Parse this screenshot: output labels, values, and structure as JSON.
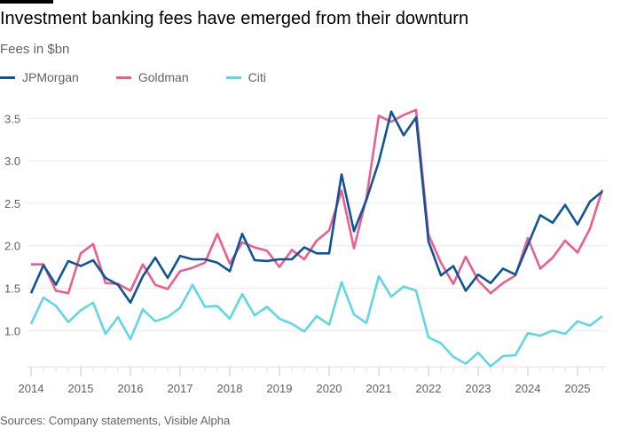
{
  "title": "Investment banking fees have emerged from their downturn",
  "subtitle": "Fees in $bn",
  "source": "Sources: Company statements, Visible Alpha",
  "chart_data": {
    "type": "line",
    "title": "Investment banking fees have emerged from their downturn",
    "ylabel": "Fees in $bn",
    "xlabel": "",
    "frequency": "quarterly",
    "x_start": "2014 Q1",
    "x_end": "2025 Q3",
    "xlim": [
      2014,
      2025.5
    ],
    "ylim": [
      0.55,
      3.65
    ],
    "yticks": [
      1.0,
      1.5,
      2.0,
      2.5,
      3.0,
      3.5
    ],
    "ytick_labels": [
      "1.0",
      "1.5",
      "2.0",
      "2.5",
      "3.0",
      "3.5"
    ],
    "xticks": [
      2014,
      2015,
      2016,
      2017,
      2018,
      2019,
      2020,
      2021,
      2022,
      2023,
      2024,
      2025
    ],
    "xtick_labels": [
      "2014",
      "2015",
      "2016",
      "2017",
      "2018",
      "2019",
      "2020",
      "2021",
      "2022",
      "2023",
      "2024",
      "2025"
    ],
    "grid": true,
    "legend": "top-left",
    "series": [
      {
        "name": "JPMorgan",
        "color": "#0f5499",
        "values": [
          1.44,
          1.77,
          1.54,
          1.82,
          1.76,
          1.83,
          1.62,
          1.54,
          1.33,
          1.64,
          1.86,
          1.62,
          1.88,
          1.84,
          1.84,
          1.8,
          1.7,
          2.14,
          1.83,
          1.82,
          1.84,
          1.84,
          1.98,
          1.91,
          1.91,
          2.84,
          2.17,
          2.54,
          2.99,
          3.58,
          3.3,
          3.51,
          2.05,
          1.65,
          1.76,
          1.47,
          1.66,
          1.56,
          1.73,
          1.66,
          2.01,
          2.36,
          2.27,
          2.48,
          2.25,
          2.52,
          2.64
        ]
      },
      {
        "name": "Goldman",
        "color": "#eb5e8d",
        "values": [
          1.78,
          1.78,
          1.47,
          1.44,
          1.91,
          2.02,
          1.56,
          1.55,
          1.47,
          1.78,
          1.54,
          1.49,
          1.7,
          1.74,
          1.8,
          2.14,
          1.79,
          2.04,
          1.98,
          1.94,
          1.75,
          1.95,
          1.84,
          2.06,
          2.18,
          2.65,
          1.97,
          2.56,
          3.53,
          3.46,
          3.54,
          3.6,
          2.13,
          1.8,
          1.55,
          1.87,
          1.59,
          1.44,
          1.56,
          1.65,
          2.09,
          1.73,
          1.86,
          2.06,
          1.92,
          2.2,
          2.66
        ]
      },
      {
        "name": "Citi",
        "color": "#5fd8e3",
        "values": [
          1.08,
          1.39,
          1.29,
          1.1,
          1.24,
          1.33,
          0.96,
          1.16,
          0.9,
          1.25,
          1.11,
          1.16,
          1.27,
          1.54,
          1.28,
          1.29,
          1.14,
          1.43,
          1.18,
          1.28,
          1.14,
          1.08,
          0.99,
          1.17,
          1.07,
          1.57,
          1.19,
          1.09,
          1.64,
          1.4,
          1.52,
          1.47,
          0.92,
          0.85,
          0.69,
          0.61,
          0.74,
          0.58,
          0.7,
          0.71,
          0.97,
          0.94,
          1.0,
          0.96,
          1.11,
          1.06,
          1.17
        ]
      }
    ]
  }
}
